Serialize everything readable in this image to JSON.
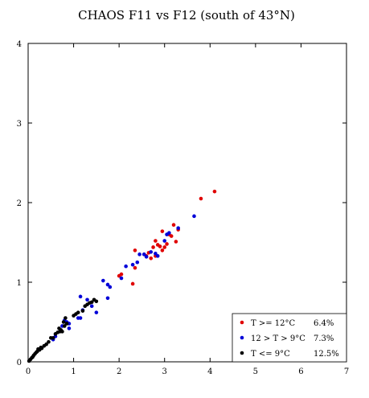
{
  "chart_data": {
    "type": "scatter",
    "title": "CHAOS F11 vs F12 (south of 43°N)",
    "xlabel": "",
    "ylabel": "",
    "xlim": [
      0,
      7
    ],
    "ylim": [
      0,
      4
    ],
    "x_ticks": [
      "0",
      "1",
      "2",
      "3",
      "4",
      "5",
      "6",
      "7"
    ],
    "y_ticks": [
      "0",
      "1",
      "2",
      "3",
      "4"
    ],
    "legend_position": "bottom-right",
    "series": [
      {
        "name": "T >= 12°C",
        "stat": "6.4%",
        "color": "#e00000",
        "points": [
          [
            2.0,
            1.08
          ],
          [
            2.05,
            1.1
          ],
          [
            2.3,
            0.98
          ],
          [
            2.35,
            1.18
          ],
          [
            2.35,
            1.4
          ],
          [
            2.55,
            1.35
          ],
          [
            2.6,
            1.33
          ],
          [
            2.65,
            1.37
          ],
          [
            2.7,
            1.3
          ],
          [
            2.75,
            1.44
          ],
          [
            2.8,
            1.33
          ],
          [
            2.8,
            1.52
          ],
          [
            2.85,
            1.47
          ],
          [
            2.9,
            1.45
          ],
          [
            2.95,
            1.4
          ],
          [
            2.95,
            1.64
          ],
          [
            3.0,
            1.44
          ],
          [
            3.05,
            1.48
          ],
          [
            3.1,
            1.6
          ],
          [
            3.15,
            1.58
          ],
          [
            3.2,
            1.72
          ],
          [
            3.25,
            1.51
          ],
          [
            3.3,
            1.66
          ],
          [
            3.8,
            2.05
          ],
          [
            4.1,
            2.14
          ]
        ]
      },
      {
        "name": "12 > T > 9°C",
        "stat": "7.3%",
        "color": "#0000d8",
        "points": [
          [
            0.55,
            0.28
          ],
          [
            0.6,
            0.32
          ],
          [
            0.75,
            0.45
          ],
          [
            0.8,
            0.52
          ],
          [
            0.85,
            0.5
          ],
          [
            0.9,
            0.48
          ],
          [
            0.9,
            0.42
          ],
          [
            1.1,
            0.55
          ],
          [
            1.15,
            0.55
          ],
          [
            1.15,
            0.82
          ],
          [
            1.2,
            0.65
          ],
          [
            1.3,
            0.78
          ],
          [
            1.4,
            0.7
          ],
          [
            1.5,
            0.62
          ],
          [
            1.65,
            1.02
          ],
          [
            1.75,
            0.97
          ],
          [
            1.75,
            0.8
          ],
          [
            1.8,
            0.94
          ],
          [
            2.05,
            1.05
          ],
          [
            2.15,
            1.2
          ],
          [
            2.3,
            1.22
          ],
          [
            2.4,
            1.25
          ],
          [
            2.45,
            1.35
          ],
          [
            2.55,
            1.35
          ],
          [
            2.6,
            1.32
          ],
          [
            2.7,
            1.38
          ],
          [
            2.8,
            1.36
          ],
          [
            2.85,
            1.33
          ],
          [
            3.0,
            1.52
          ],
          [
            3.05,
            1.6
          ],
          [
            3.1,
            1.62
          ],
          [
            3.3,
            1.68
          ],
          [
            3.65,
            1.83
          ]
        ]
      },
      {
        "name": "T <= 9°C",
        "stat": "12.5%",
        "color": "#000000",
        "points": [
          [
            0.02,
            0.01
          ],
          [
            0.05,
            0.03
          ],
          [
            0.08,
            0.05
          ],
          [
            0.1,
            0.06
          ],
          [
            0.12,
            0.08
          ],
          [
            0.15,
            0.1
          ],
          [
            0.18,
            0.12
          ],
          [
            0.2,
            0.13
          ],
          [
            0.22,
            0.16
          ],
          [
            0.25,
            0.15
          ],
          [
            0.28,
            0.18
          ],
          [
            0.3,
            0.17
          ],
          [
            0.35,
            0.2
          ],
          [
            0.4,
            0.22
          ],
          [
            0.45,
            0.25
          ],
          [
            0.5,
            0.3
          ],
          [
            0.55,
            0.3
          ],
          [
            0.6,
            0.35
          ],
          [
            0.65,
            0.37
          ],
          [
            0.68,
            0.42
          ],
          [
            0.7,
            0.38
          ],
          [
            0.72,
            0.4
          ],
          [
            0.75,
            0.38
          ],
          [
            0.78,
            0.5
          ],
          [
            0.8,
            0.45
          ],
          [
            0.82,
            0.55
          ],
          [
            0.85,
            0.48
          ],
          [
            1.0,
            0.58
          ],
          [
            1.05,
            0.6
          ],
          [
            1.1,
            0.62
          ],
          [
            1.2,
            0.64
          ],
          [
            1.25,
            0.7
          ],
          [
            1.3,
            0.72
          ],
          [
            1.35,
            0.74
          ],
          [
            1.4,
            0.75
          ],
          [
            1.45,
            0.78
          ],
          [
            1.5,
            0.76
          ]
        ]
      }
    ]
  }
}
